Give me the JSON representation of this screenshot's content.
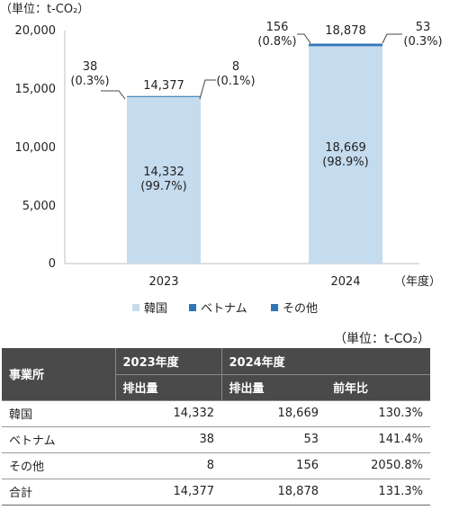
{
  "chart_data": {
    "type": "bar",
    "stacked": true,
    "unit_label": "（単位：t-CO₂）",
    "xaxis_label": "（年度）",
    "categories": [
      "2023",
      "2024"
    ],
    "y_ticks": [
      "20,000",
      "15,000",
      "10,000",
      "5,000",
      "0"
    ],
    "ylim": [
      0,
      20000
    ],
    "grid": false,
    "legend_position": "bottom",
    "series": [
      {
        "name": "韓国",
        "color": "#c5dbee",
        "values": [
          14332,
          18669
        ],
        "labels": [
          "14,332\n(99.7%)",
          "18,669\n(98.9%)"
        ]
      },
      {
        "name": "ベトナム",
        "color": "#2e75b6",
        "values": [
          38,
          53
        ],
        "labels": [
          "38\n(0.3%)",
          "53\n(0.3%)"
        ]
      },
      {
        "name": "その他",
        "color": "#2e75b6",
        "values": [
          8,
          156
        ],
        "labels": [
          "8\n(0.1%)",
          "156\n(0.8%)"
        ]
      }
    ],
    "totals": [
      "14,377",
      "18,878"
    ]
  },
  "table": {
    "unit": "（単位：t-CO₂）",
    "header_row1": [
      "事業所",
      "2023年度",
      "2024年度"
    ],
    "header_row2": [
      "排出量",
      "排出量",
      "前年比"
    ],
    "rows": [
      [
        "韓国",
        "14,332",
        "18,669",
        "130.3%"
      ],
      [
        "ベトナム",
        "38",
        "53",
        "141.4%"
      ],
      [
        "その他",
        "8",
        "156",
        "2050.8%"
      ],
      [
        "合計",
        "14,377",
        "18,878",
        "131.3%"
      ]
    ]
  }
}
